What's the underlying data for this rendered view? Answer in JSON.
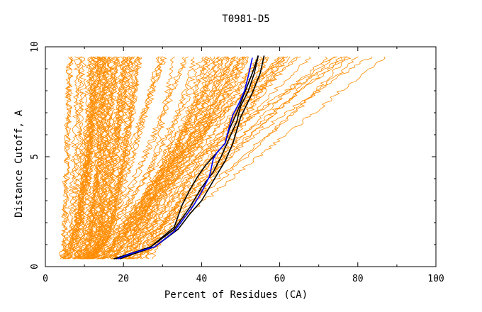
{
  "chart_data": {
    "type": "line",
    "title": "T0981-D5",
    "xlabel": "Percent of Residues (CA)",
    "ylabel": "Distance Cutoff, A",
    "xlim": [
      0,
      100
    ],
    "ylim": [
      0,
      10
    ],
    "xticks": [
      "0",
      "20",
      "40",
      "60",
      "80",
      "100"
    ],
    "yticks": [
      "0",
      "5",
      "10"
    ],
    "grid": false,
    "legend": "none",
    "colors": {
      "background_models": "#ff8c00",
      "highlight_black": "#000000",
      "highlight_blue": "#0000ff"
    },
    "highlight_series": [
      {
        "color": "#000000",
        "x": [
          18,
          22,
          27,
          33,
          37,
          40,
          43,
          45,
          47,
          49,
          50,
          52,
          53.5,
          54.5
        ],
        "y": [
          0.35,
          0.6,
          0.9,
          1.7,
          2.7,
          3.6,
          4.3,
          5.0,
          5.8,
          6.6,
          7.3,
          8.0,
          8.8,
          9.6
        ]
      },
      {
        "color": "#000000",
        "x": [
          19,
          23,
          28,
          34,
          37,
          40,
          42,
          44,
          46,
          48,
          50,
          53,
          55,
          56
        ],
        "y": [
          0.35,
          0.6,
          0.9,
          1.7,
          2.4,
          3.0,
          3.6,
          4.2,
          4.8,
          5.6,
          6.8,
          7.9,
          8.8,
          9.6
        ]
      },
      {
        "color": "#000000",
        "x": [
          17.5,
          21,
          27,
          33,
          35,
          37,
          39,
          41,
          44,
          46,
          47,
          49,
          51,
          53,
          54.5
        ],
        "y": [
          0.35,
          0.55,
          0.9,
          1.8,
          2.8,
          3.5,
          4.1,
          4.6,
          5.2,
          5.6,
          6.2,
          7.0,
          7.9,
          8.8,
          9.6
        ]
      },
      {
        "color": "#0000ff",
        "x": [
          18.5,
          22,
          28,
          33,
          35.5,
          38,
          40,
          42,
          43,
          44,
          46,
          47,
          48,
          49.5,
          51,
          52,
          53
        ],
        "y": [
          0.35,
          0.6,
          0.9,
          1.6,
          2.2,
          2.8,
          3.4,
          4.1,
          4.9,
          5.2,
          5.6,
          6.3,
          6.9,
          7.4,
          8.0,
          8.7,
          9.5
        ]
      }
    ]
  }
}
